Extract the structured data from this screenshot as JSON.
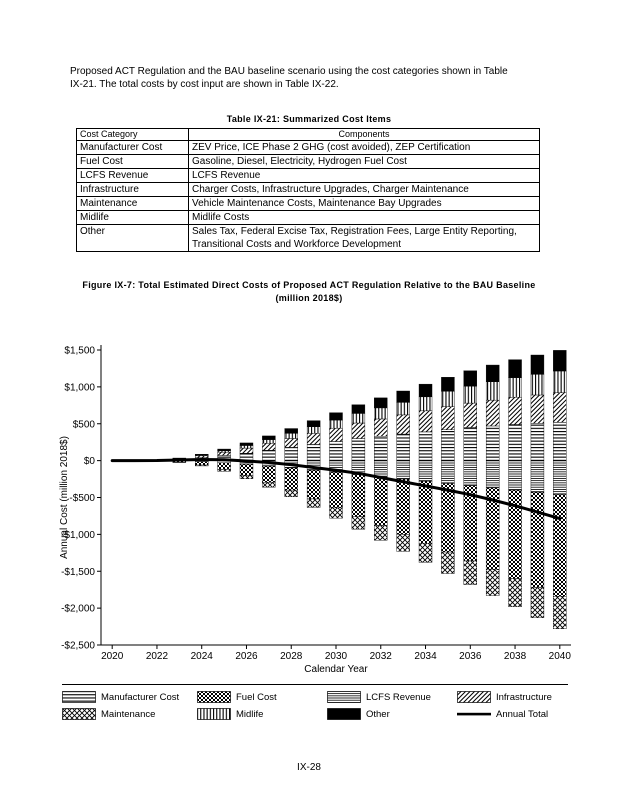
{
  "page": {
    "paragraph": "Proposed ACT Regulation and the BAU baseline scenario using the cost categories shown in Table IX-21. The total costs by cost input are shown in Table IX-22.",
    "page_number": "IX-28"
  },
  "table": {
    "caption": "Table IX-21: Summarized Cost Items",
    "headers": {
      "category": "Cost Category",
      "components": "Components"
    },
    "rows": [
      {
        "category": "Manufacturer Cost",
        "components": "ZEV Price, ICE Phase 2 GHG (cost avoided), ZEP Certification"
      },
      {
        "category": "Fuel Cost",
        "components": "Gasoline, Diesel, Electricity, Hydrogen Fuel Cost"
      },
      {
        "category": "LCFS Revenue",
        "components": "LCFS Revenue"
      },
      {
        "category": "Infrastructure",
        "components": "Charger Costs, Infrastructure Upgrades, Charger Maintenance"
      },
      {
        "category": "Maintenance",
        "components": "Vehicle Maintenance Costs, Maintenance Bay Upgrades"
      },
      {
        "category": "Midlife",
        "components": "Midlife Costs"
      },
      {
        "category": "Other",
        "components": "Sales Tax, Federal Excise Tax, Registration Fees, Large Entity Reporting, Transitional Costs and Workforce Development"
      }
    ]
  },
  "figure": {
    "caption": "Figure IX-7: Total Estimated Direct Costs of Proposed ACT Regulation Relative to the BAU Baseline (million 2018$)"
  },
  "chart_data": {
    "type": "bar",
    "stacked": true,
    "title": "Total Estimated Direct Costs of Proposed ACT Regulation Relative to the BAU Baseline (million 2018$)",
    "xlabel": "Calendar Year",
    "ylabel": "Annual Cost (million 2018$)",
    "ylim": [
      -2500,
      1500
    ],
    "ytick_step": 500,
    "ytick_labels": [
      "$1,500",
      "$1,000",
      "$500",
      "$0",
      "-$500",
      "-$1,000",
      "-$1,500",
      "-$2,000",
      "-$2,500"
    ],
    "years": [
      2020,
      2021,
      2022,
      2023,
      2024,
      2025,
      2026,
      2027,
      2028,
      2029,
      2030,
      2031,
      2032,
      2033,
      2034,
      2035,
      2036,
      2037,
      2038,
      2039,
      2040
    ],
    "xtick_years": [
      2020,
      2022,
      2024,
      2026,
      2028,
      2030,
      2032,
      2034,
      2036,
      2038,
      2040
    ],
    "grid": false,
    "legend_position": "bottom",
    "series": [
      {
        "name": "Manufacturer Cost",
        "pattern": "hlines",
        "values": [
          0,
          0,
          5,
          15,
          40,
          70,
          100,
          140,
          180,
          220,
          260,
          300,
          330,
          360,
          390,
          420,
          450,
          470,
          490,
          505,
          520
        ]
      },
      {
        "name": "Infrastructure",
        "pattern": "diag",
        "values": [
          0,
          0,
          3,
          10,
          25,
          45,
          70,
          95,
          120,
          150,
          180,
          210,
          235,
          260,
          285,
          310,
          330,
          350,
          370,
          385,
          400
        ]
      },
      {
        "name": "Midlife",
        "pattern": "vlines",
        "values": [
          0,
          0,
          0,
          5,
          10,
          20,
          35,
          50,
          70,
          90,
          110,
          130,
          150,
          170,
          190,
          210,
          230,
          250,
          265,
          280,
          295
        ]
      },
      {
        "name": "Other",
        "pattern": "solid",
        "values": [
          0,
          0,
          2,
          5,
          12,
          22,
          35,
          50,
          65,
          82,
          100,
          118,
          136,
          154,
          172,
          190,
          208,
          226,
          244,
          262,
          280
        ]
      },
      {
        "name": "LCFS Revenue",
        "pattern": "finehlines",
        "values": [
          0,
          0,
          -2,
          -6,
          -15,
          -30,
          -50,
          -75,
          -100,
          -130,
          -160,
          -190,
          -220,
          -250,
          -280,
          -310,
          -340,
          -370,
          -400,
          -430,
          -460
        ]
      },
      {
        "name": "Fuel Cost",
        "pattern": "checker",
        "values": [
          0,
          0,
          -5,
          -15,
          -45,
          -90,
          -150,
          -220,
          -300,
          -390,
          -480,
          -570,
          -660,
          -750,
          -840,
          -930,
          -1020,
          -1110,
          -1200,
          -1290,
          -1380
        ]
      },
      {
        "name": "Maintenance",
        "pattern": "crosshatch",
        "values": [
          0,
          0,
          -2,
          -5,
          -12,
          -25,
          -45,
          -65,
          -90,
          -115,
          -140,
          -170,
          -200,
          -230,
          -260,
          -290,
          -320,
          -350,
          -380,
          -410,
          -440
        ]
      }
    ],
    "annual_total": {
      "name": "Annual Total",
      "values": [
        0,
        0,
        1,
        9,
        15,
        12,
        -5,
        -25,
        -55,
        -93,
        -130,
        -172,
        -229,
        -286,
        -343,
        -400,
        -462,
        -534,
        -611,
        -698,
        -785
      ]
    }
  },
  "legend": {
    "items": [
      {
        "label": "Manufacturer Cost",
        "fill": "url(#pat-hlines)",
        "type": "patch"
      },
      {
        "label": "Fuel Cost",
        "fill": "url(#pat-checker)",
        "type": "patch"
      },
      {
        "label": "LCFS Revenue",
        "fill": "url(#pat-finehlines)",
        "type": "patch"
      },
      {
        "label": "Infrastructure",
        "fill": "url(#pat-diag)",
        "type": "patch"
      },
      {
        "label": "Maintenance",
        "fill": "url(#pat-crosshatch)",
        "type": "patch"
      },
      {
        "label": "Midlife",
        "fill": "url(#pat-vlines)",
        "type": "patch"
      },
      {
        "label": "Other",
        "fill": "#000000",
        "type": "patch"
      },
      {
        "label": "Annual Total",
        "fill": "#000000",
        "type": "line"
      }
    ]
  },
  "colors": {
    "ink": "#000000",
    "paper": "#ffffff"
  }
}
